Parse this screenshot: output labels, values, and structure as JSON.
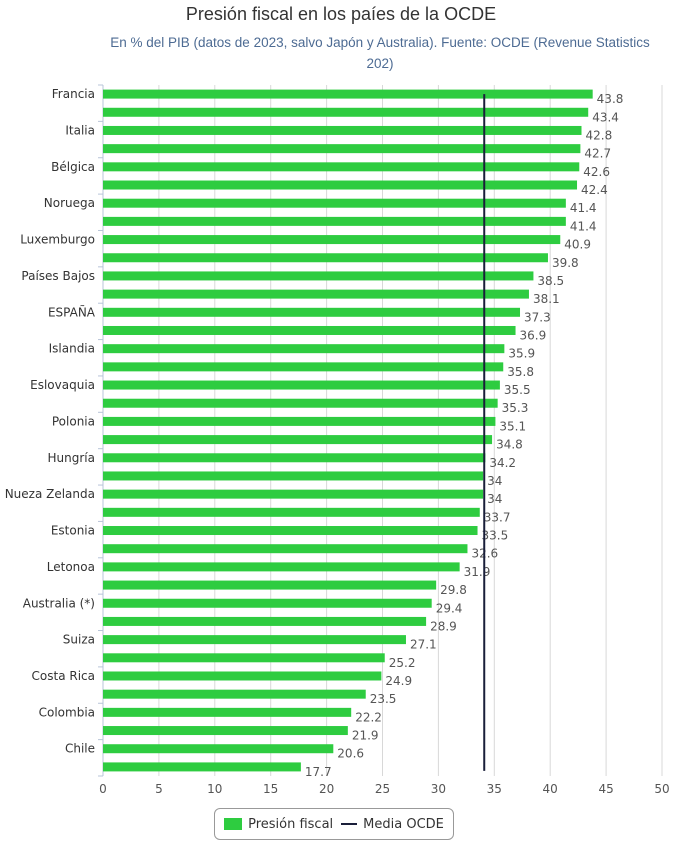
{
  "chart_data": {
    "type": "bar",
    "orientation": "horizontal",
    "title": "Presión fiscal en los paíes de la OCDE",
    "subtitle": "En % del PIB (datos de 2023, salvo Japón y Australia). Fuente: OCDE (Revenue Statistics 202)",
    "categories": [
      "Francia",
      "",
      "Italia",
      "",
      "Bélgica",
      "",
      "Noruega",
      "",
      "Luxemburgo",
      "",
      "Países Bajos",
      "",
      "ESPAÑA",
      "",
      "Islandia",
      "",
      "Eslovaquia",
      "",
      "Polonia",
      "",
      "Hungría",
      "",
      "Nueza Zelanda",
      "",
      "Estonia",
      "",
      "Letonoa",
      "",
      "Australia (*)",
      "",
      "Suiza",
      "",
      "Costa Rica",
      "",
      "Colombia",
      "",
      "Chile",
      ""
    ],
    "series": [
      {
        "name": "Presión fiscal",
        "color": "#2ecc40",
        "values": [
          43.8,
          43.4,
          42.8,
          42.7,
          42.6,
          42.4,
          41.4,
          41.4,
          40.9,
          39.8,
          38.5,
          38.1,
          37.3,
          36.9,
          35.9,
          35.8,
          35.5,
          35.3,
          35.1,
          34.8,
          34.2,
          34,
          34,
          33.7,
          33.5,
          32.6,
          31.9,
          29.8,
          29.4,
          28.9,
          27.1,
          25.2,
          24.9,
          23.5,
          22.2,
          21.9,
          20.6,
          17.7
        ]
      },
      {
        "name": "Media OCDE",
        "color": "#1a1f3a",
        "value": 34.1
      }
    ],
    "xlim": [
      0,
      50
    ],
    "xticks": [
      0,
      5,
      10,
      15,
      20,
      25,
      30,
      35,
      40,
      45,
      50
    ],
    "grid": true,
    "legend": "bottom"
  }
}
